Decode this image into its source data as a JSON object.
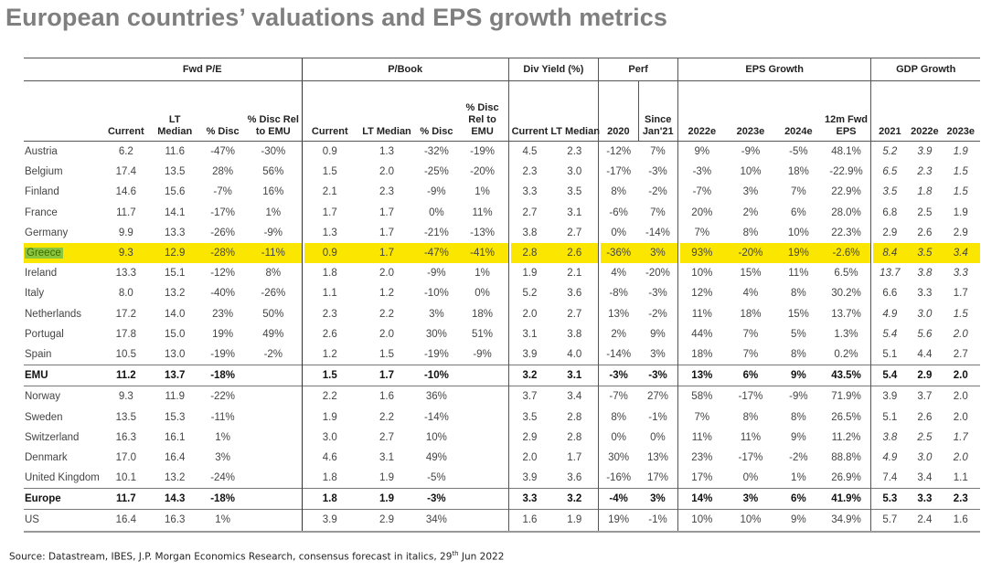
{
  "title": "European countries’ valuations and EPS growth metrics",
  "groups": [
    "Fwd P/E",
    "P/Book",
    "Div Yield (%)",
    "Perf",
    "EPS Growth",
    "GDP Growth"
  ],
  "subheaders": {
    "pe_current": "Current",
    "pe_lt1": "LT",
    "pe_lt2": "Median",
    "pe_disc": "% Disc",
    "pe_rel1": "% Disc Rel",
    "pe_rel2": "to EMU",
    "pb_current": "Current",
    "pb_lt": "LT Median",
    "pb_disc": "% Disc",
    "pb_rel1": "% Disc",
    "pb_rel2": "Rel to",
    "pb_rel3": "EMU",
    "dy_current": "Current",
    "dy_lt": "LT Median",
    "perf_2020": "2020",
    "perf_since1": "Since",
    "perf_since2": "Jan'21",
    "eps_2022": "2022e",
    "eps_2023": "2023e",
    "eps_2024": "2024e",
    "eps_fwd1": "12m Fwd",
    "eps_fwd2": "EPS",
    "gdp_2021": "2021",
    "gdp_2022": "2022e",
    "gdp_2023": "2023e"
  },
  "rows": [
    {
      "name": "Austria",
      "v": [
        "6.2",
        "11.6",
        "-47%",
        "-30%",
        "0.9",
        "1.3",
        "-32%",
        "-19%",
        "4.5",
        "2.3",
        "-12%",
        "7%",
        "9%",
        "-9%",
        "-5%",
        "48.1%",
        "5.2",
        "3.9",
        "1.9"
      ],
      "gdp_italic": [
        true,
        true,
        true
      ]
    },
    {
      "name": "Belgium",
      "v": [
        "17.4",
        "13.5",
        "28%",
        "56%",
        "1.5",
        "2.0",
        "-25%",
        "-20%",
        "2.3",
        "3.0",
        "-17%",
        "-3%",
        "-3%",
        "10%",
        "18%",
        "-22.9%",
        "6.5",
        "2.3",
        "1.5"
      ],
      "gdp_italic": [
        true,
        true,
        true
      ]
    },
    {
      "name": "Finland",
      "v": [
        "14.6",
        "15.6",
        "-7%",
        "16%",
        "2.1",
        "2.3",
        "-9%",
        "1%",
        "3.3",
        "3.5",
        "8%",
        "-2%",
        "-7%",
        "3%",
        "7%",
        "22.9%",
        "3.5",
        "1.8",
        "1.5"
      ],
      "gdp_italic": [
        true,
        true,
        true
      ]
    },
    {
      "name": "France",
      "v": [
        "11.7",
        "14.1",
        "-17%",
        "1%",
        "1.7",
        "1.7",
        "0%",
        "11%",
        "2.7",
        "3.1",
        "-6%",
        "7%",
        "20%",
        "2%",
        "6%",
        "28.0%",
        "6.8",
        "2.5",
        "1.9"
      ],
      "gdp_italic": [
        false,
        false,
        false
      ]
    },
    {
      "name": "Germany",
      "v": [
        "9.9",
        "13.3",
        "-26%",
        "-9%",
        "1.3",
        "1.7",
        "-21%",
        "-13%",
        "3.8",
        "2.7",
        "0%",
        "-14%",
        "7%",
        "8%",
        "10%",
        "22.3%",
        "2.9",
        "2.6",
        "2.9"
      ],
      "gdp_italic": [
        false,
        false,
        false
      ]
    },
    {
      "name": "Greece",
      "v": [
        "9.3",
        "12.9",
        "-28%",
        "-11%",
        "0.9",
        "1.7",
        "-47%",
        "-41%",
        "2.8",
        "2.6",
        "-36%",
        "3%",
        "93%",
        "-20%",
        "19%",
        "-2.6%",
        "8.4",
        "3.5",
        "3.4"
      ],
      "gdp_italic": [
        true,
        true,
        true
      ],
      "highlight": true
    },
    {
      "name": "Ireland",
      "v": [
        "13.3",
        "15.1",
        "-12%",
        "8%",
        "1.8",
        "2.0",
        "-9%",
        "1%",
        "1.9",
        "2.1",
        "4%",
        "-20%",
        "10%",
        "15%",
        "11%",
        "6.5%",
        "13.7",
        "3.8",
        "3.3"
      ],
      "gdp_italic": [
        true,
        true,
        true
      ]
    },
    {
      "name": "Italy",
      "v": [
        "8.0",
        "13.2",
        "-40%",
        "-26%",
        "1.1",
        "1.2",
        "-10%",
        "0%",
        "5.2",
        "3.6",
        "-8%",
        "-3%",
        "12%",
        "4%",
        "8%",
        "30.2%",
        "6.6",
        "3.3",
        "1.7"
      ],
      "gdp_italic": [
        false,
        false,
        false
      ]
    },
    {
      "name": "Netherlands",
      "v": [
        "17.2",
        "14.0",
        "23%",
        "50%",
        "2.3",
        "2.2",
        "3%",
        "18%",
        "2.0",
        "2.7",
        "13%",
        "-2%",
        "11%",
        "18%",
        "15%",
        "13.7%",
        "4.9",
        "3.0",
        "1.5"
      ],
      "gdp_italic": [
        true,
        true,
        true
      ]
    },
    {
      "name": "Portugal",
      "v": [
        "17.8",
        "15.0",
        "19%",
        "49%",
        "2.6",
        "2.0",
        "30%",
        "51%",
        "3.1",
        "3.8",
        "2%",
        "9%",
        "44%",
        "7%",
        "5%",
        "1.3%",
        "5.4",
        "5.6",
        "2.0"
      ],
      "gdp_italic": [
        true,
        true,
        true
      ]
    },
    {
      "name": "Spain",
      "v": [
        "10.5",
        "13.0",
        "-19%",
        "-2%",
        "1.2",
        "1.5",
        "-19%",
        "-9%",
        "3.9",
        "4.0",
        "-14%",
        "3%",
        "18%",
        "7%",
        "8%",
        "0.2%",
        "5.1",
        "4.4",
        "2.7"
      ],
      "gdp_italic": [
        false,
        false,
        false
      ]
    },
    {
      "name": "EMU",
      "v": [
        "11.2",
        "13.7",
        "-18%",
        "",
        "1.5",
        "1.7",
        "-10%",
        "",
        "3.2",
        "3.1",
        "-3%",
        "-3%",
        "13%",
        "6%",
        "9%",
        "43.5%",
        "5.4",
        "2.9",
        "2.0"
      ],
      "gdp_italic": [
        false,
        false,
        false
      ],
      "bold": true
    },
    {
      "name": "Norway",
      "v": [
        "9.3",
        "11.9",
        "-22%",
        "",
        "2.2",
        "1.6",
        "36%",
        "",
        "3.7",
        "3.4",
        "-7%",
        "27%",
        "58%",
        "-17%",
        "-9%",
        "71.9%",
        "3.9",
        "3.7",
        "2.0"
      ],
      "gdp_italic": [
        false,
        false,
        false
      ]
    },
    {
      "name": "Sweden",
      "v": [
        "13.5",
        "15.3",
        "-11%",
        "",
        "1.9",
        "2.2",
        "-14%",
        "",
        "3.5",
        "2.8",
        "8%",
        "-1%",
        "7%",
        "8%",
        "8%",
        "26.5%",
        "5.1",
        "2.6",
        "2.0"
      ],
      "gdp_italic": [
        false,
        false,
        false
      ]
    },
    {
      "name": "Switzerland",
      "v": [
        "16.3",
        "16.1",
        "1%",
        "",
        "3.0",
        "2.7",
        "10%",
        "",
        "2.9",
        "2.8",
        "0%",
        "0%",
        "11%",
        "11%",
        "9%",
        "11.2%",
        "3.8",
        "2.5",
        "1.7"
      ],
      "gdp_italic": [
        true,
        true,
        true
      ]
    },
    {
      "name": "Denmark",
      "v": [
        "17.0",
        "16.4",
        "3%",
        "",
        "4.6",
        "3.1",
        "49%",
        "",
        "2.0",
        "1.7",
        "30%",
        "13%",
        "23%",
        "-17%",
        "-2%",
        "88.8%",
        "4.9",
        "3.0",
        "2.0"
      ],
      "gdp_italic": [
        true,
        true,
        true
      ]
    },
    {
      "name": "United Kingdom",
      "v": [
        "10.1",
        "13.2",
        "-24%",
        "",
        "1.8",
        "1.9",
        "-5%",
        "",
        "3.9",
        "3.6",
        "-16%",
        "17%",
        "17%",
        "0%",
        "1%",
        "26.9%",
        "7.4",
        "3.4",
        "1.1"
      ],
      "gdp_italic": [
        false,
        false,
        false
      ]
    },
    {
      "name": "Europe",
      "v": [
        "11.7",
        "14.3",
        "-18%",
        "",
        "1.8",
        "1.9",
        "-3%",
        "",
        "3.3",
        "3.2",
        "-4%",
        "3%",
        "14%",
        "3%",
        "6%",
        "41.9%",
        "5.3",
        "3.3",
        "2.3"
      ],
      "gdp_italic": [
        false,
        false,
        false
      ],
      "bold": true
    },
    {
      "name": "US",
      "v": [
        "16.4",
        "16.3",
        "1%",
        "",
        "3.9",
        "2.9",
        "34%",
        "",
        "1.6",
        "1.9",
        "19%",
        "-1%",
        "10%",
        "10%",
        "9%",
        "34.9%",
        "5.7",
        "2.4",
        "1.6"
      ],
      "gdp_italic": [
        false,
        false,
        false
      ]
    }
  ],
  "source": {
    "prefix": "Source: Datastream, IBES, J.P. Morgan Economics Research, consensus forecast in italics, 29",
    "sup": "th",
    "suffix": " Jun 2022"
  },
  "colors": {
    "highlight": "#fbe600",
    "greece_label": "#8cc63f",
    "title": "#7f7f7f"
  }
}
